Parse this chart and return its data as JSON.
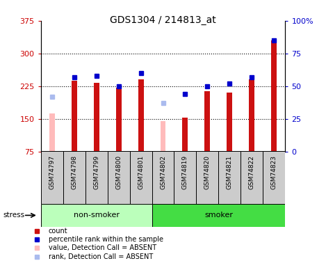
{
  "title": "GDS1304 / 214813_at",
  "samples": [
    "GSM74797",
    "GSM74798",
    "GSM74799",
    "GSM74800",
    "GSM74801",
    "GSM74802",
    "GSM74819",
    "GSM74820",
    "GSM74821",
    "GSM74822",
    "GSM74823"
  ],
  "bar_values": [
    null,
    238,
    232,
    221,
    240,
    null,
    152,
    213,
    210,
    240,
    330
  ],
  "bar_absent_values": [
    163,
    null,
    null,
    null,
    null,
    144,
    null,
    null,
    null,
    null,
    null
  ],
  "rank_values": [
    null,
    57,
    58,
    50,
    60,
    null,
    44,
    50,
    52,
    57,
    85
  ],
  "rank_absent_values": [
    42,
    null,
    null,
    null,
    null,
    37,
    null,
    null,
    null,
    null,
    null
  ],
  "ylim_left": [
    75,
    375
  ],
  "ylim_right": [
    0,
    100
  ],
  "yticks_left": [
    75,
    150,
    225,
    300,
    375
  ],
  "yticks_right": [
    0,
    25,
    50,
    75,
    100
  ],
  "ytick_labels_left": [
    "75",
    "150",
    "225",
    "300",
    "375"
  ],
  "ytick_labels_right": [
    "0",
    "25",
    "50",
    "75",
    "100%"
  ],
  "bar_color": "#cc1111",
  "bar_absent_color": "#ffbbbb",
  "rank_color": "#0000cc",
  "rank_absent_color": "#aabbee",
  "group_non_smoker_color": "#bbffbb",
  "group_smoker_color": "#44dd44",
  "group_bar_bg": "#cccccc",
  "background_color": "#ffffff",
  "title_fontsize": 10,
  "axis_label_color_left": "#cc0000",
  "axis_label_color_right": "#0000cc",
  "legend_items": [
    {
      "label": "count",
      "color": "#cc1111",
      "marker": "s"
    },
    {
      "label": "percentile rank within the sample",
      "color": "#0000cc",
      "marker": "s"
    },
    {
      "label": "value, Detection Call = ABSENT",
      "color": "#ffbbbb",
      "marker": "s"
    },
    {
      "label": "rank, Detection Call = ABSENT",
      "color": "#aabbee",
      "marker": "s"
    }
  ]
}
